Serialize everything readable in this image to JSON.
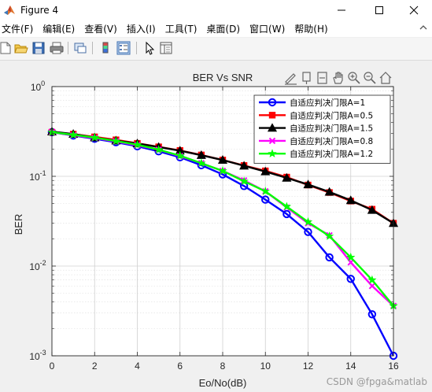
{
  "window": {
    "title": "Figure 4",
    "controls": [
      "minimize-button",
      "maximize-button",
      "close-button"
    ]
  },
  "menu": {
    "items": [
      "文件(F)",
      "编辑(E)",
      "查看(V)",
      "插入(I)",
      "工具(T)",
      "桌面(D)",
      "窗口(W)",
      "帮助(H)"
    ]
  },
  "toolbar": {
    "icons": [
      "new-figure-icon",
      "open-file-icon",
      "save-icon",
      "print-icon",
      "link-plot-icon",
      "colorbar-icon",
      "legend-icon",
      "edit-plot-arrow-icon",
      "property-inspector-icon"
    ]
  },
  "axes_toolbar": {
    "icons": [
      "brush-icon",
      "data-tips-icon",
      "rotate-icon",
      "pan-hand-icon",
      "zoom-in-icon",
      "zoom-out-icon",
      "home-icon"
    ]
  },
  "chart_data": {
    "type": "line",
    "title": "BER Vs SNR",
    "xlabel": "Eo/No(dB)",
    "ylabel": "BER",
    "xlim": [
      0,
      16
    ],
    "ylim": [
      0.001,
      1
    ],
    "yscale": "log",
    "xticks": [
      "0",
      "2",
      "4",
      "6",
      "8",
      "10",
      "12",
      "14",
      "16"
    ],
    "yticks": [
      {
        "value": 1,
        "base": "10",
        "exp": "0"
      },
      {
        "value": 0.1,
        "base": "10",
        "exp": "-1"
      },
      {
        "value": 0.01,
        "base": "10",
        "exp": "-2"
      },
      {
        "value": 0.001,
        "base": "10",
        "exp": "-3"
      }
    ],
    "grid": true,
    "legend_position": "top-right",
    "x": [
      0,
      1,
      2,
      3,
      4,
      5,
      6,
      7,
      8,
      9,
      10,
      11,
      12,
      13,
      14,
      15,
      16
    ],
    "series": [
      {
        "name": "自适应判决门限A=1",
        "color": "#0000ff",
        "marker": "circle",
        "values": [
          0.31,
          0.285,
          0.262,
          0.24,
          0.216,
          0.19,
          0.163,
          0.133,
          0.105,
          0.078,
          0.055,
          0.038,
          0.024,
          0.0125,
          0.0072,
          0.0029,
          0.001
        ]
      },
      {
        "name": "自适应判决门限A=0.5",
        "color": "#ff0000",
        "marker": "square",
        "values": [
          0.31,
          0.295,
          0.275,
          0.255,
          0.233,
          0.213,
          0.194,
          0.173,
          0.152,
          0.132,
          0.115,
          0.098,
          0.08,
          0.066,
          0.053,
          0.043,
          0.03
        ]
      },
      {
        "name": "自适应判决门限A=1.5",
        "color": "#000000",
        "marker": "triangle",
        "values": [
          0.315,
          0.296,
          0.27,
          0.25,
          0.232,
          0.212,
          0.193,
          0.172,
          0.152,
          0.131,
          0.113,
          0.096,
          0.081,
          0.067,
          0.054,
          0.042,
          0.03
        ]
      },
      {
        "name": "自适应判决门限A=0.8",
        "color": "#ff00ff",
        "marker": "x",
        "values": [
          0.31,
          0.287,
          0.267,
          0.245,
          0.222,
          0.198,
          0.168,
          0.14,
          0.115,
          0.09,
          0.068,
          0.045,
          0.03,
          0.022,
          0.011,
          0.006,
          0.0036
        ]
      },
      {
        "name": "自适应判决门限A=1.2",
        "color": "#00ff00",
        "marker": "star",
        "values": [
          0.31,
          0.29,
          0.27,
          0.247,
          0.225,
          0.198,
          0.17,
          0.14,
          0.115,
          0.088,
          0.068,
          0.046,
          0.031,
          0.0215,
          0.0125,
          0.007,
          0.0036
        ]
      }
    ]
  },
  "watermark": "CSDN @fpga&matlab"
}
